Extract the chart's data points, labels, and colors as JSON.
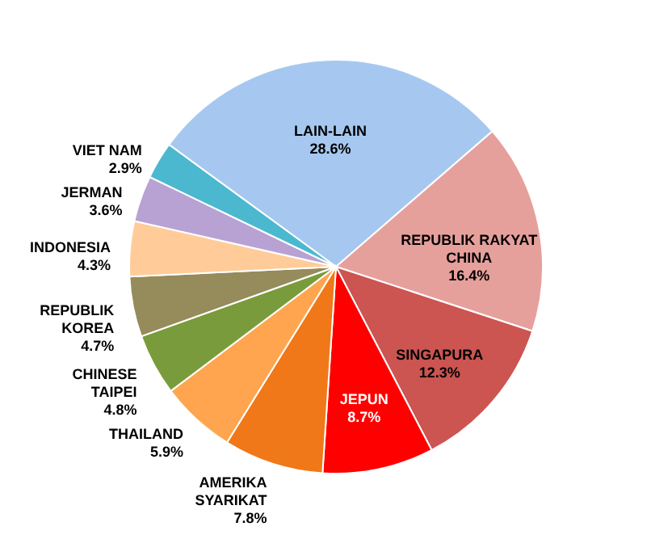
{
  "chart_data": {
    "type": "pie",
    "categories": [
      "LAIN-LAIN",
      "REPUBLIK RAKYAT CHINA",
      "SINGAPURA",
      "JEPUN",
      "AMERIKA SYARIKAT",
      "THAILAND",
      "CHINESE TAIPEI",
      "REPUBLIK KOREA",
      "INDONESIA",
      "JERMAN",
      "VIET NAM"
    ],
    "values": [
      28.6,
      16.4,
      12.3,
      8.7,
      7.8,
      5.9,
      4.8,
      4.7,
      4.3,
      3.6,
      2.9
    ],
    "colors": [
      "#a6c8f0",
      "#e6a09c",
      "#cc5451",
      "#ff0000",
      "#f07818",
      "#ffa54f",
      "#7a9b3c",
      "#958b5b",
      "#ffcc99",
      "#b7a2d3",
      "#4bb8cf"
    ],
    "value_labels": [
      "28.6%",
      "16.4%",
      "12.3%",
      "8.7%",
      "7.8%",
      "5.9%",
      "4.8%",
      "4.7%",
      "4.3%",
      "3.6%",
      "2.9%"
    ]
  }
}
